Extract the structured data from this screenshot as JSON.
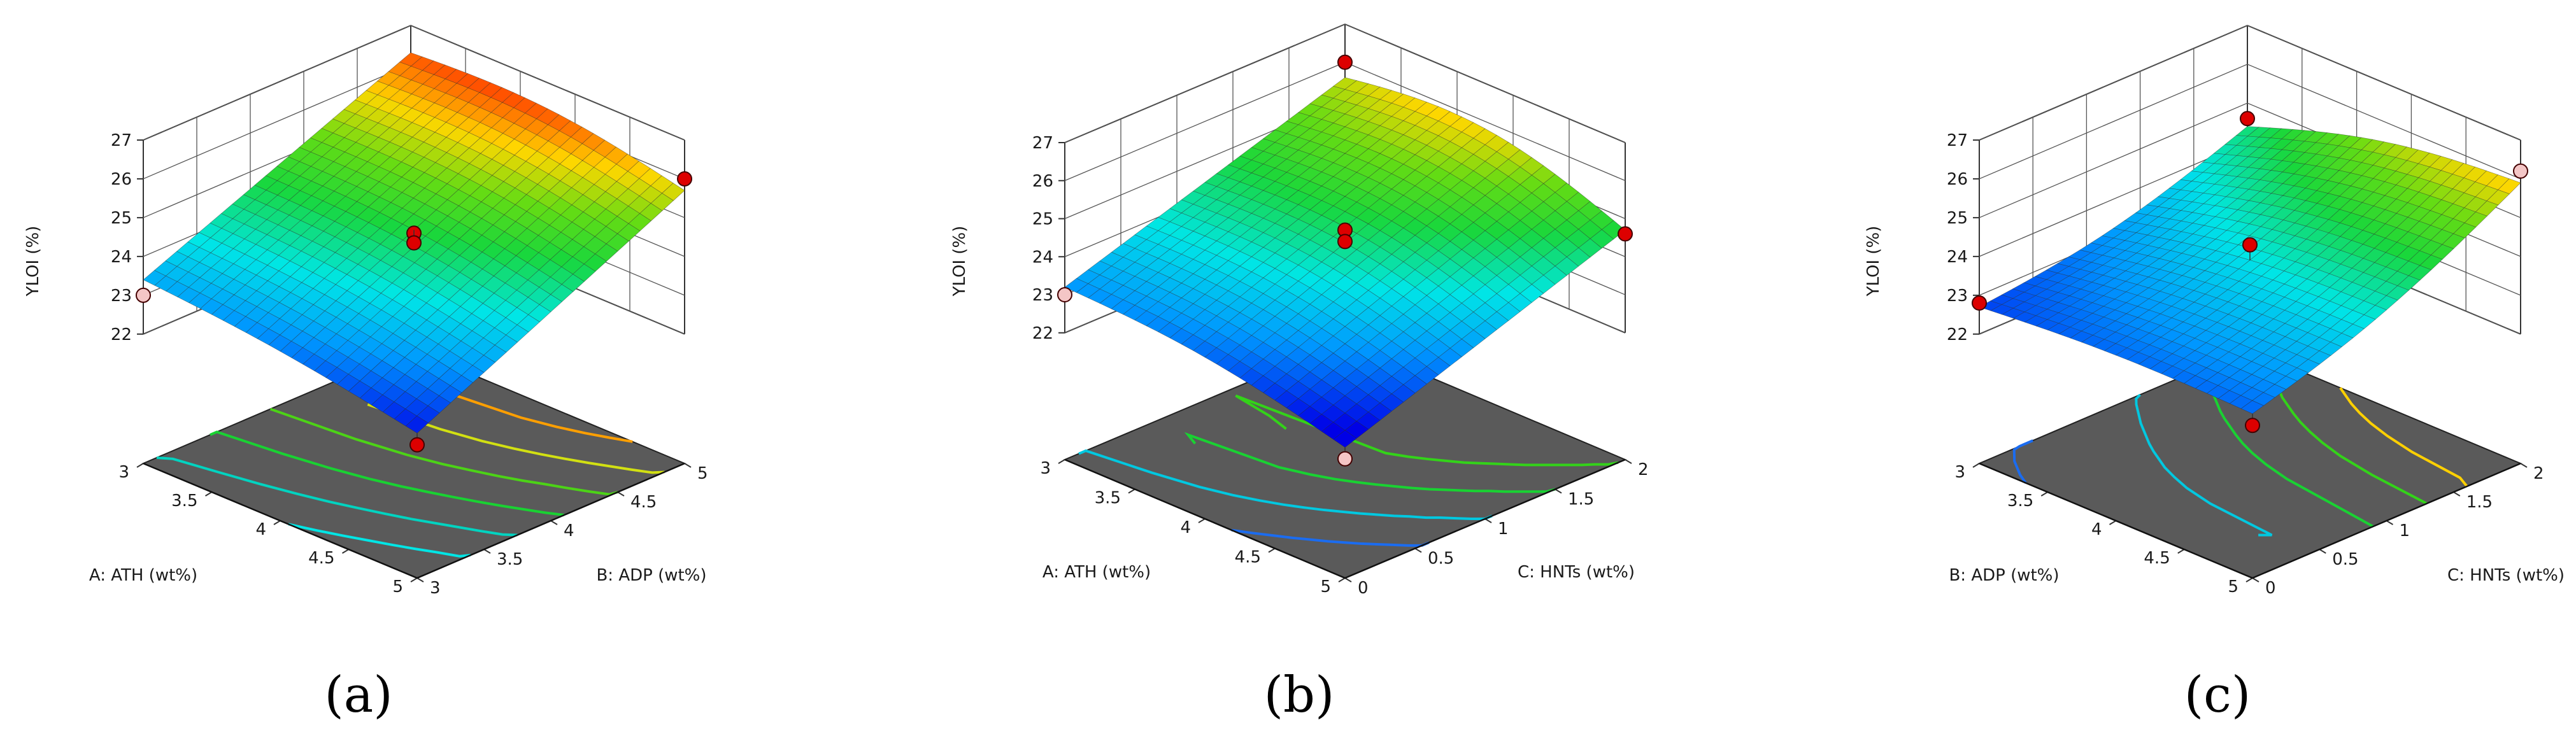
{
  "chart_data": [
    {
      "type": "surface3d",
      "caption": "(a)",
      "zlabel": "YLOI (%)",
      "xlabel": "A: ATH (wt%)",
      "ylabel": "B: ADP (wt%)",
      "x_ticks": [
        "3",
        "3.5",
        "4",
        "4.5",
        "5"
      ],
      "y_ticks": [
        "3",
        "3.5",
        "4",
        "4.5",
        "5"
      ],
      "z_ticks": [
        "22",
        "23",
        "24",
        "25",
        "26",
        "27"
      ],
      "xlim": [
        3,
        5
      ],
      "ylim": [
        3,
        5
      ],
      "zlim": [
        22,
        27
      ],
      "corners": {
        "x_lo_y_lo": 23.4,
        "x_lo_y_hi": 26.3,
        "x_hi_y_lo": 22.4,
        "x_hi_y_hi": 25.7
      },
      "points": [
        {
          "x": 3,
          "y": 3,
          "z": 23.0,
          "kind": "below"
        },
        {
          "x": 5,
          "y": 5,
          "z": 26.0,
          "kind": "above"
        },
        {
          "x": 5,
          "y": 3,
          "z": 22.1,
          "kind": "above"
        },
        {
          "x": 4,
          "y": 4,
          "z": 24.6,
          "kind": "above"
        },
        {
          "x": 4,
          "y": 4,
          "z": 24.35,
          "kind": "above"
        }
      ],
      "contour_colors": [
        "#00e5e5",
        "#00d3c0",
        "#19d232",
        "#4cd316",
        "#d2e012",
        "#ff9f00"
      ],
      "contour_vals": [
        23.0,
        23.6,
        24.2,
        24.8,
        25.4,
        26.0
      ]
    },
    {
      "type": "surface3d",
      "caption": "(b)",
      "zlabel": "YLOI (%)",
      "xlabel": "A: ATH (wt%)",
      "ylabel": "C: HNTs (wt%)",
      "x_ticks": [
        "3",
        "3.5",
        "4",
        "4.5",
        "5"
      ],
      "y_ticks": [
        "0",
        "0.5",
        "1",
        "1.5",
        "2"
      ],
      "z_ticks": [
        "22",
        "23",
        "24",
        "25",
        "26",
        "27"
      ],
      "xlim": [
        3,
        5
      ],
      "ylim": [
        0,
        2
      ],
      "zlim": [
        22,
        27
      ],
      "corners": {
        "x_lo_y_lo": 23.2,
        "x_lo_y_hi": 25.6,
        "x_hi_y_lo": 22.1,
        "x_hi_y_hi": 24.7
      },
      "points": [
        {
          "x": 3,
          "y": 0,
          "z": 23.0,
          "kind": "below"
        },
        {
          "x": 3,
          "y": 2,
          "z": 26.0,
          "kind": "above"
        },
        {
          "x": 5,
          "y": 0,
          "z": 21.8,
          "kind": "below"
        },
        {
          "x": 5,
          "y": 2,
          "z": 24.6,
          "kind": "above"
        },
        {
          "x": 4,
          "y": 1,
          "z": 24.7,
          "kind": "above"
        },
        {
          "x": 4,
          "y": 1,
          "z": 24.4,
          "kind": "above"
        }
      ],
      "contour_colors": [
        "#1b6cf0",
        "#00c8e0",
        "#19d232",
        "#33d319"
      ],
      "contour_vals": [
        22.8,
        23.4,
        24.0,
        24.6
      ]
    },
    {
      "type": "surface3d",
      "caption": "(c)",
      "zlabel": "YLOI (%)",
      "xlabel": "B: ADP (wt%)",
      "ylabel": "C: HNTs (wt%)",
      "x_ticks": [
        "3",
        "3.5",
        "4",
        "4.5",
        "5"
      ],
      "y_ticks": [
        "0",
        "0.5",
        "1",
        "1.5",
        "2"
      ],
      "z_ticks": [
        "22",
        "23",
        "24",
        "25",
        "26",
        "27"
      ],
      "xlim": [
        3,
        5
      ],
      "ylim": [
        0,
        2
      ],
      "zlim": [
        22,
        27
      ],
      "corners": {
        "x_lo_y_lo": 22.7,
        "x_lo_y_hi": 24.4,
        "x_hi_y_lo": 22.9,
        "x_hi_y_hi": 25.9
      },
      "points": [
        {
          "x": 3,
          "y": 0,
          "z": 22.8,
          "kind": "above"
        },
        {
          "x": 3,
          "y": 2,
          "z": 24.6,
          "kind": "above"
        },
        {
          "x": 5,
          "y": 2,
          "z": 26.2,
          "kind": "below"
        },
        {
          "x": 5,
          "y": 0,
          "z": 22.6,
          "kind": "above"
        },
        {
          "x": 4,
          "y": 1,
          "z": 24.3,
          "kind": "above"
        }
      ],
      "contour_colors": [
        "#1b6cf0",
        "#00c8e0",
        "#19d232",
        "#33d319",
        "#ffd000"
      ],
      "contour_vals": [
        22.8,
        23.4,
        24.0,
        24.6,
        25.2
      ]
    }
  ]
}
